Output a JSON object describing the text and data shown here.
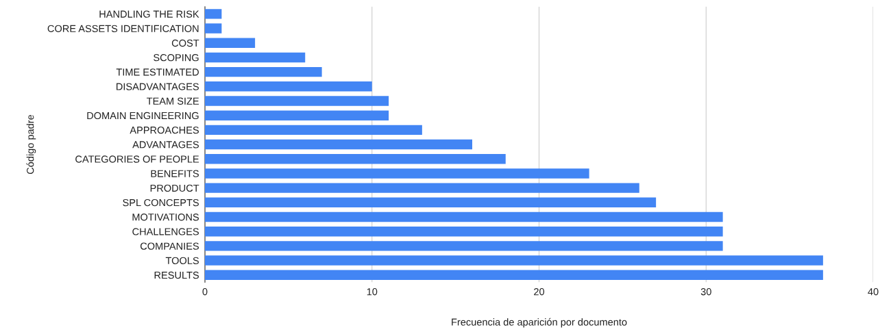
{
  "chart_data": {
    "type": "bar",
    "orientation": "horizontal",
    "xlabel": "Frecuencia de aparición por documento",
    "ylabel": "Código padre",
    "categories": [
      "HANDLING THE RISK",
      "CORE ASSETS IDENTIFICATION",
      "COST",
      "SCOPING",
      "TIME ESTIMATED",
      "DISADVANTAGES",
      "TEAM SIZE",
      "DOMAIN ENGINEERING",
      "APPROACHES",
      "ADVANTAGES",
      "CATEGORIES OF PEOPLE",
      "BENEFITS",
      "PRODUCT",
      "SPL CONCEPTS",
      "MOTIVATIONS",
      "CHALLENGES",
      "COMPANIES",
      "TOOLS",
      "RESULTS"
    ],
    "values": [
      1,
      1,
      3,
      6,
      7,
      10,
      11,
      11,
      13,
      16,
      18,
      23,
      26,
      27,
      31,
      31,
      31,
      37,
      37
    ],
    "color": "#4285f4",
    "xlim": [
      0,
      40
    ],
    "xticks": [
      0,
      10,
      20,
      30,
      40
    ],
    "grid": "x"
  }
}
